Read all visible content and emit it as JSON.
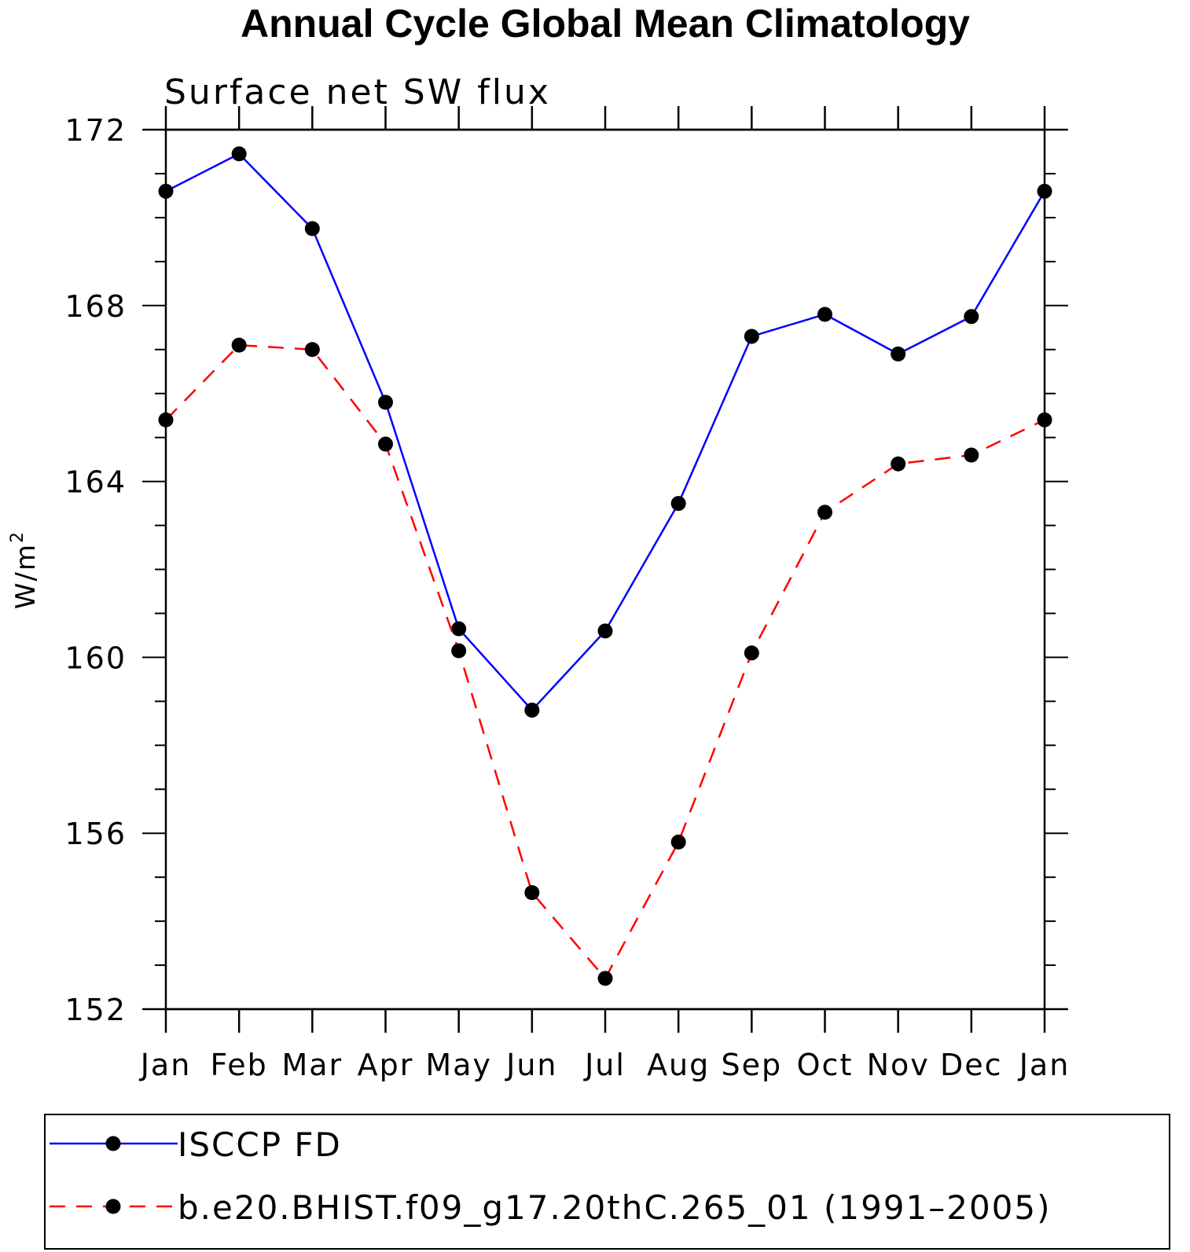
{
  "chart_data": {
    "type": "line",
    "title": "Annual Cycle Global Mean Climatology",
    "subtitle": "Surface net SW flux",
    "xlabel": "",
    "ylabel": "W/m",
    "ylabel_superscript": "2",
    "categories": [
      "Jan",
      "Feb",
      "Mar",
      "Apr",
      "May",
      "Jun",
      "Jul",
      "Aug",
      "Sep",
      "Oct",
      "Nov",
      "Dec",
      "Jan"
    ],
    "ylim": [
      152,
      172
    ],
    "yticks": [
      152,
      156,
      160,
      164,
      168,
      172
    ],
    "yminor_step": 1,
    "grid": false,
    "legend_position": "bottom",
    "series": [
      {
        "name": "ISCCP FD",
        "color": "#0000ff",
        "dash": "solid",
        "values": [
          170.6,
          171.45,
          169.75,
          165.8,
          160.65,
          158.8,
          160.6,
          163.5,
          167.3,
          167.8,
          166.9,
          167.75,
          170.6
        ]
      },
      {
        "name": "b.e20.BHIST.f09_g17.20thC.265_01 (1991–2005)",
        "color": "#ff0000",
        "dash": "dashed",
        "values": [
          165.4,
          167.1,
          167.0,
          164.85,
          160.15,
          154.65,
          152.7,
          155.8,
          160.1,
          163.3,
          164.4,
          164.6,
          165.4
        ]
      }
    ]
  }
}
